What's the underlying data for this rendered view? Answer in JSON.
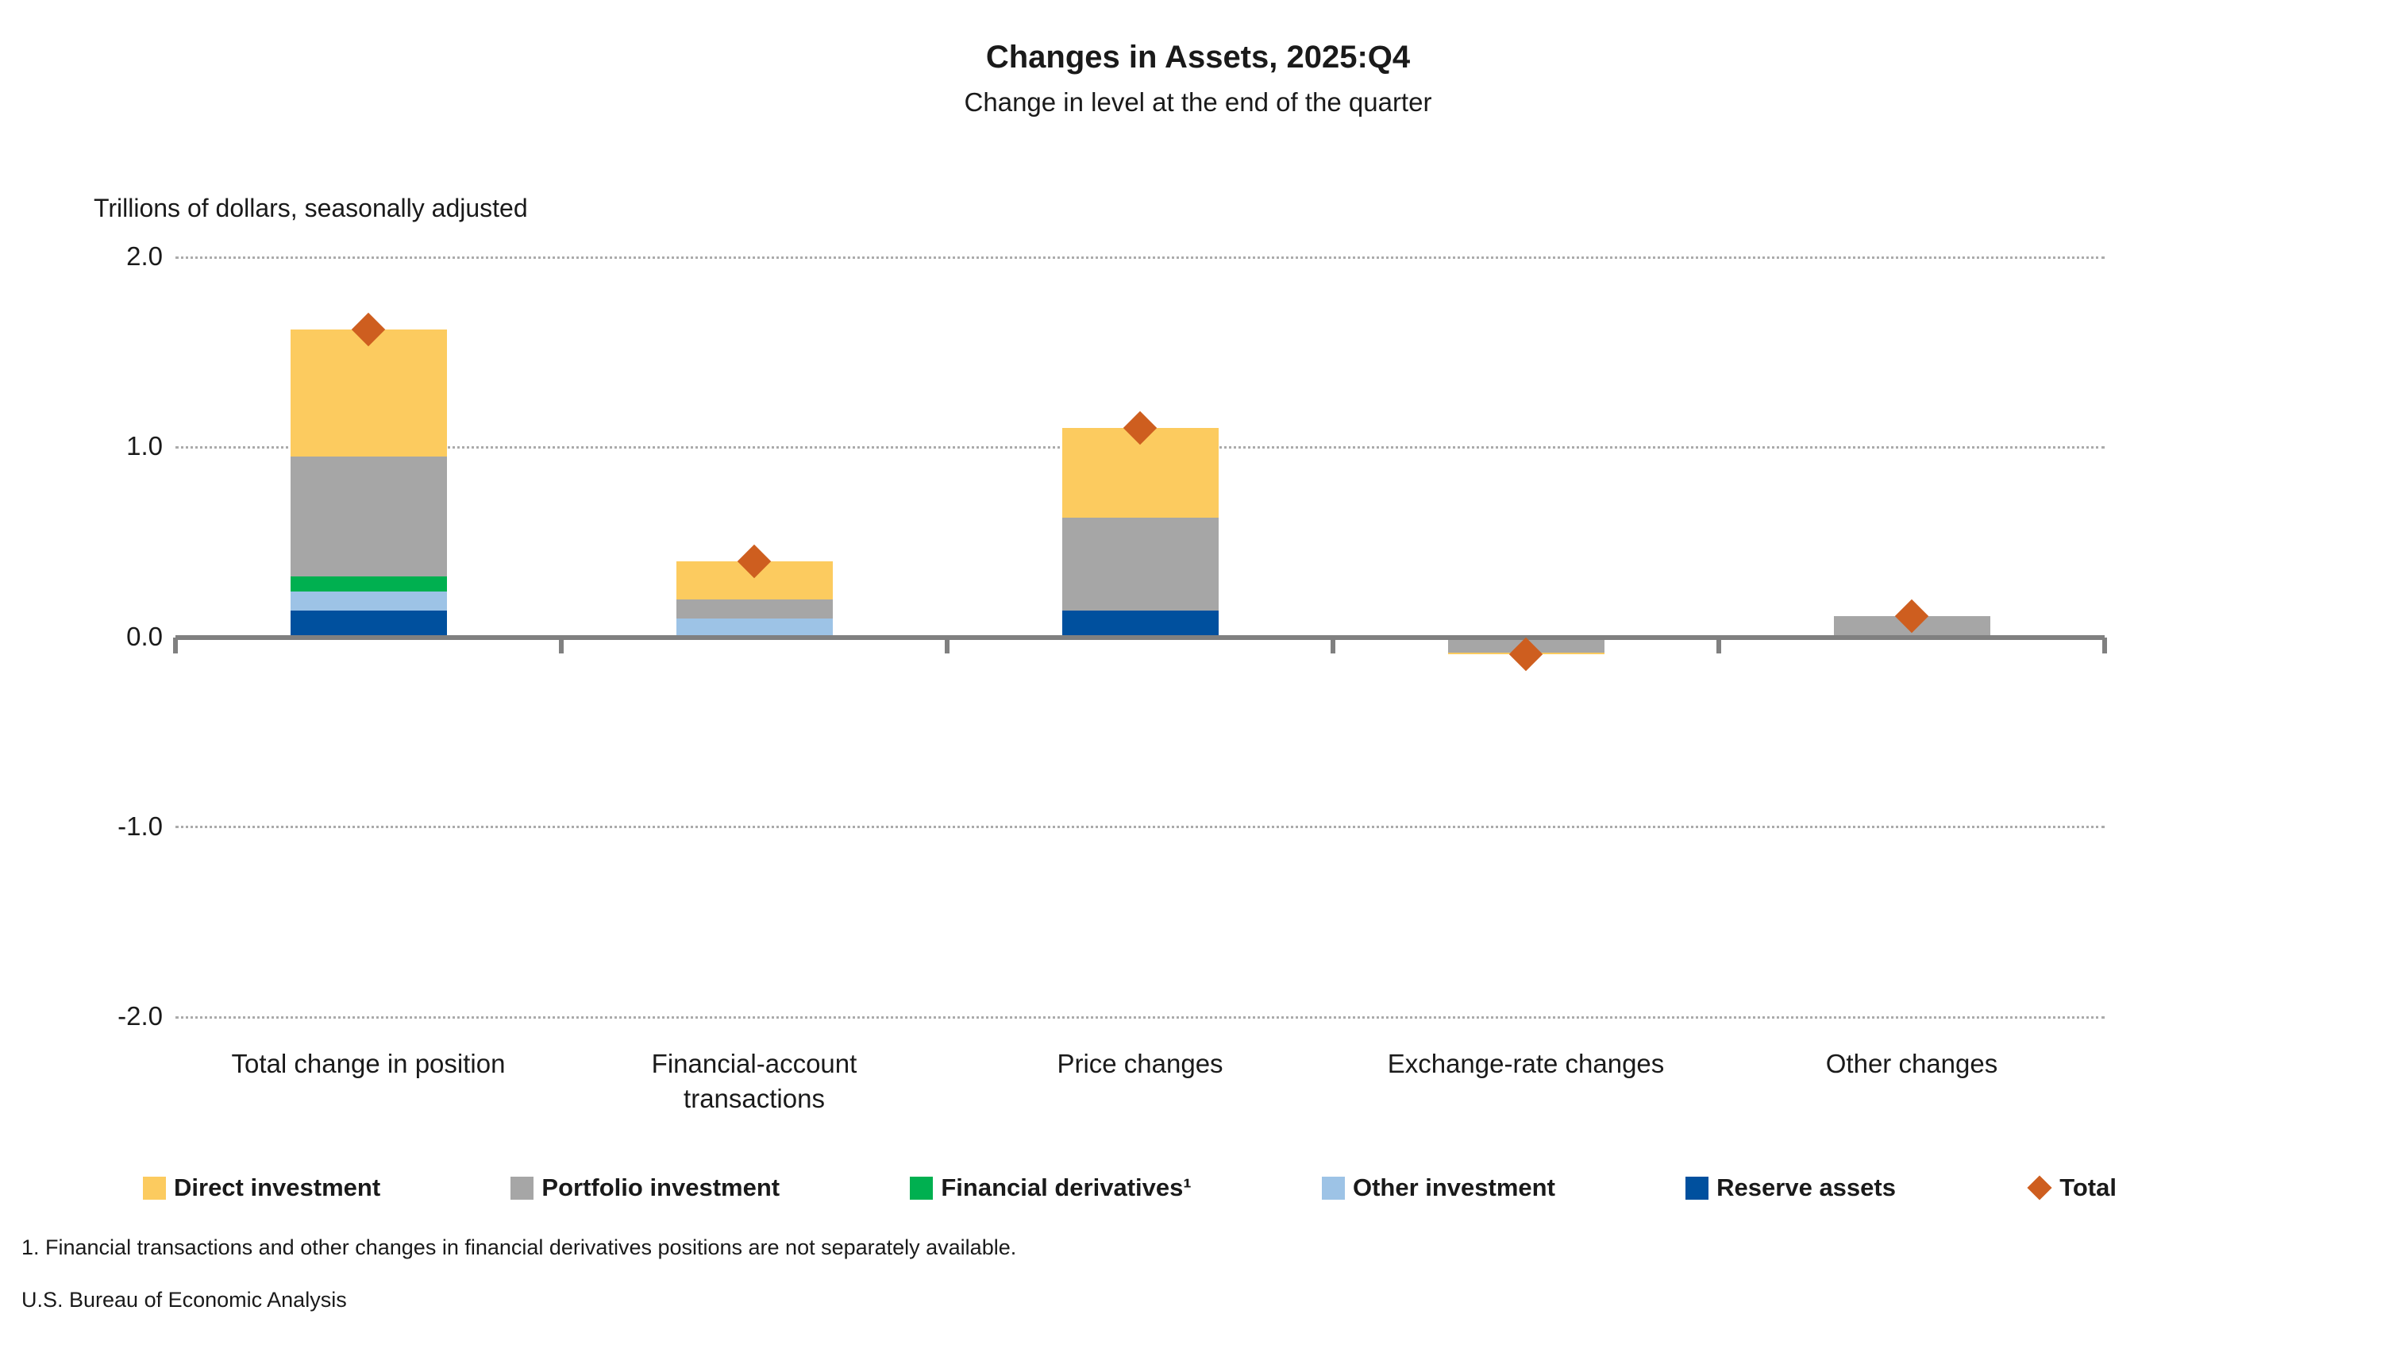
{
  "title": "Changes in Assets, 2025:Q4",
  "subtitle": "Change in level at the end of the quarter",
  "units_label": "Trillions of dollars, seasonally adjusted",
  "footnote": "1. Financial transactions and other changes in financial derivatives positions are not separately available.",
  "source": "U.S. Bureau of Economic Analysis",
  "chart_data": {
    "type": "bar",
    "stacked": true,
    "title": "Changes in Assets, 2025:Q4",
    "subtitle": "Change in level at the end of the quarter",
    "ylabel": "Trillions of dollars, seasonally adjusted",
    "xlabel": "",
    "ylim": [
      -2.0,
      2.0
    ],
    "grid": "horizontal dotted gridlines at 2.0, 1.0, -1.0, -2.0; solid gray axis line at 0.0",
    "legend_position": "bottom",
    "categories": [
      "Total change in position",
      "Financial-account transactions",
      "Price changes",
      "Exchange-rate changes",
      "Other changes"
    ],
    "yticks": [
      {
        "value": 2.0,
        "label": "2.0"
      },
      {
        "value": 1.0,
        "label": "1.0"
      },
      {
        "value": 0.0,
        "label": "0.0"
      },
      {
        "value": -1.0,
        "label": "-1.0"
      },
      {
        "value": -2.0,
        "label": "-2.0"
      }
    ],
    "series": [
      {
        "name": "Reserve assets",
        "color": "#00509E",
        "values": [
          0.14,
          0.0,
          0.14,
          0.0,
          0.0
        ]
      },
      {
        "name": "Other investment",
        "color": "#9DC3E6",
        "values": [
          0.1,
          0.1,
          0.0,
          0.0,
          0.0
        ]
      },
      {
        "name": "Financial derivatives¹",
        "color": "#00B050",
        "values": [
          0.08,
          0.0,
          0.0,
          0.0,
          0.0
        ]
      },
      {
        "name": "Portfolio investment",
        "color": "#A6A6A6",
        "values": [
          0.63,
          0.1,
          0.49,
          -0.08,
          0.11
        ]
      },
      {
        "name": "Direct investment",
        "color": "#FCCB5F",
        "values": [
          0.67,
          0.2,
          0.47,
          -0.01,
          0.0
        ]
      }
    ],
    "total_markers": {
      "name": "Total",
      "shape": "diamond",
      "color": "#CE5E1F",
      "values": [
        1.62,
        0.4,
        1.1,
        -0.09,
        0.11
      ]
    },
    "legend_order": [
      "Direct investment",
      "Portfolio investment",
      "Financial derivatives¹",
      "Other investment",
      "Reserve assets",
      "Total"
    ]
  }
}
